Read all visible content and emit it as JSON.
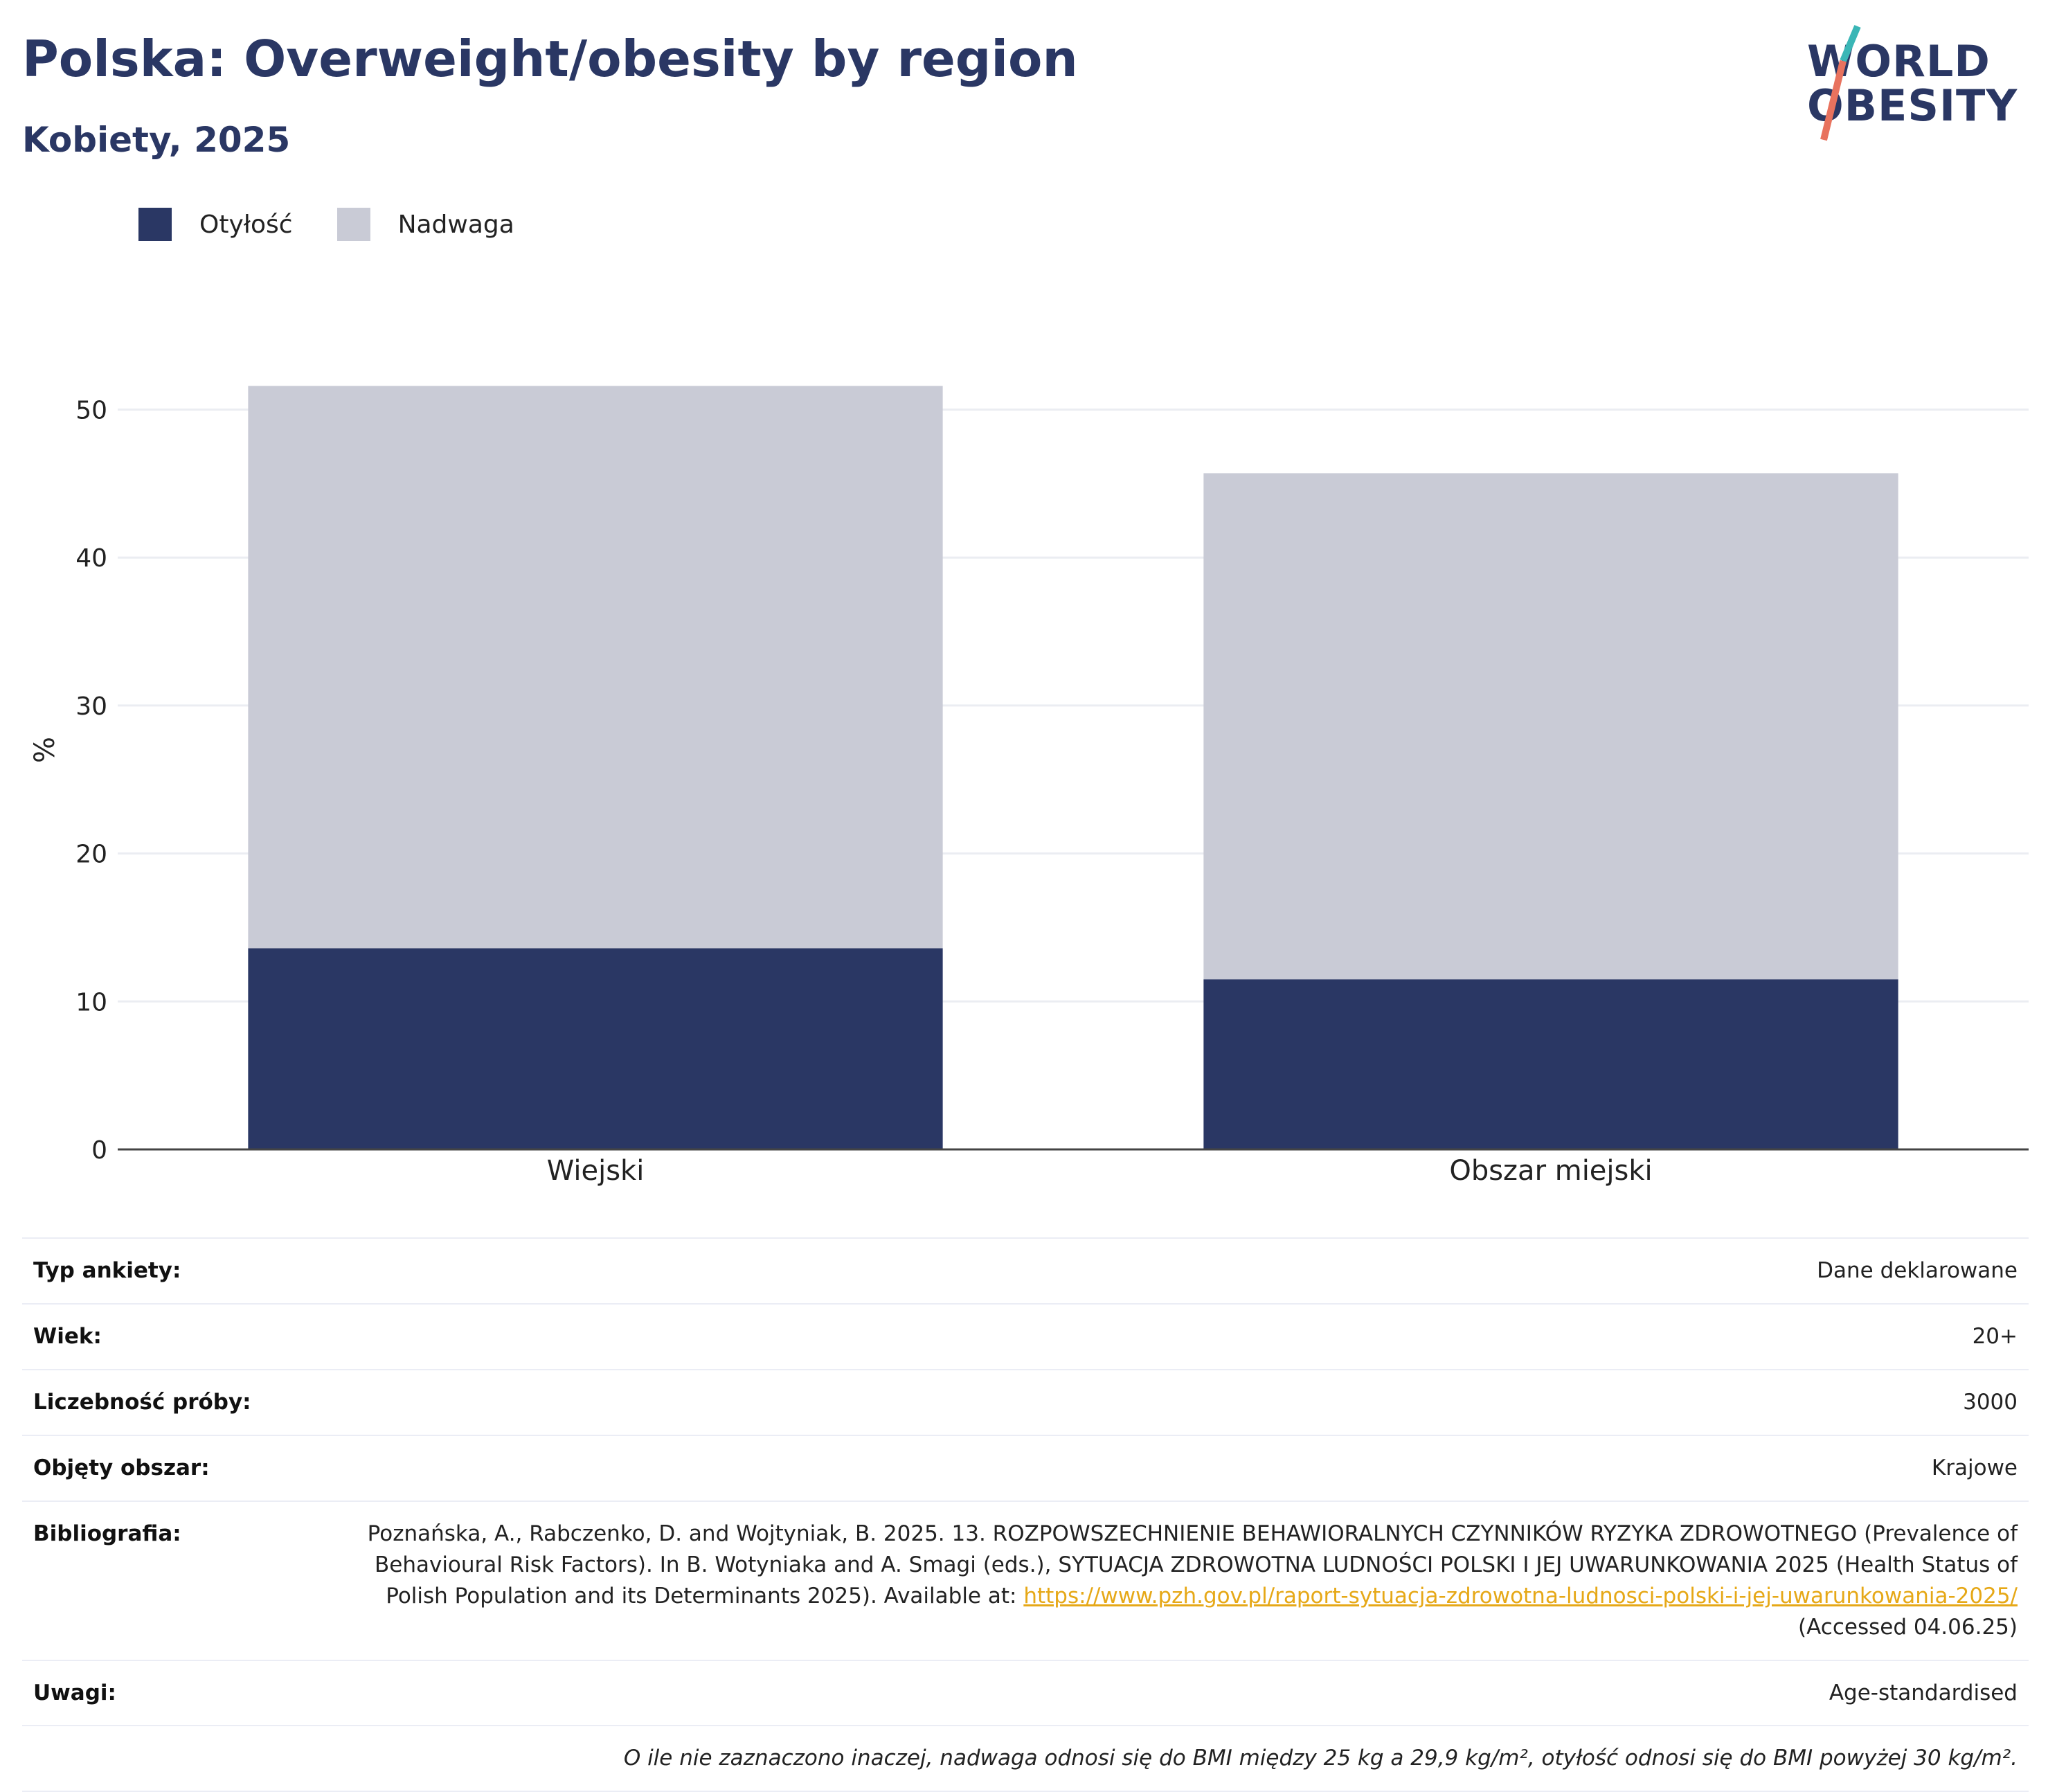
{
  "header": {
    "title": "Polska: Overweight/obesity by region",
    "subtitle": "Kobiety, 2025",
    "logo_line1": "WORLD",
    "logo_line2": "OBESITY"
  },
  "legend": [
    {
      "label": "Otyłość",
      "color": "#2a3764"
    },
    {
      "label": "Nadwaga",
      "color": "#c9cbd6"
    }
  ],
  "chart_data": {
    "type": "bar",
    "stacked": true,
    "categories": [
      "Wiejski",
      "Obszar miejski"
    ],
    "series": [
      {
        "name": "Otyłość",
        "color": "#2a3764",
        "values": [
          13.6,
          11.5
        ]
      },
      {
        "name": "Nadwaga",
        "color": "#c9cbd6",
        "values": [
          38.0,
          34.2
        ]
      }
    ],
    "ylabel": "%",
    "ylim": [
      0,
      55
    ],
    "yticks": [
      0,
      10,
      20,
      30,
      40,
      50
    ],
    "grid": true,
    "legend_position": "top-left"
  },
  "info": {
    "rows": [
      {
        "label": "Typ ankiety:",
        "value": "Dane deklarowane"
      },
      {
        "label": "Wiek:",
        "value": "20+"
      },
      {
        "label": "Liczebność próby:",
        "value": "3000"
      },
      {
        "label": "Objęty obszar:",
        "value": "Krajowe"
      }
    ],
    "bibliography": {
      "label": "Bibliografia:",
      "text": "Poznańska, A., Rabczenko, D. and Wojtyniak, B. 2025. 13. ROZPOWSZECHNIENIE BEHAWIORALNYCH CZYNNIKÓW RYZYKA ZDROWOTNEGO (Prevalence of Behavioural Risk Factors). In B. Wotyniaka and A. Smagi (eds.), SYTUACJA ZDROWOTNA LUDNOŚCI POLSKI I JEJ UWARUNKOWANIA 2025 (Health Status of Polish Population and its Determinants 2025). Available at:",
      "link": "https://www.pzh.gov.pl/raport-sytuacja-zdrowotna-ludnosci-polski-i-jej-uwarunkowania-2025/",
      "suffix": "(Accessed 04.06.25)"
    },
    "notes": {
      "label": "Uwagi:",
      "value": "Age-standardised"
    },
    "footnote": "O ile nie zaznaczono inaczej, nadwaga odnosi się do BMI między 25 kg a 29,9 kg/m², otyłość odnosi się do BMI powyżej 30 kg/m²."
  }
}
